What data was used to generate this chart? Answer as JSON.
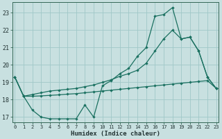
{
  "xlabel": "Humidex (Indice chaleur)",
  "bg_color": "#c8e0e0",
  "grid_color": "#a0c8c8",
  "line_color": "#1a7060",
  "spine_color": "#336655",
  "tick_color": "#223333",
  "xlim": [
    -0.3,
    23.3
  ],
  "ylim": [
    16.7,
    23.6
  ],
  "yticks": [
    17,
    18,
    19,
    20,
    21,
    22,
    23
  ],
  "xticks": [
    0,
    1,
    2,
    3,
    4,
    5,
    6,
    7,
    8,
    9,
    10,
    11,
    12,
    13,
    14,
    15,
    16,
    17,
    18,
    19,
    20,
    21,
    22,
    23
  ],
  "upper_x": [
    0,
    1,
    2,
    3,
    4,
    5,
    6,
    7,
    8,
    9,
    10,
    11,
    12,
    13,
    14,
    15,
    16,
    17,
    18,
    19,
    20,
    21,
    22,
    23
  ],
  "upper_y": [
    19.3,
    18.2,
    17.4,
    17.0,
    16.9,
    16.9,
    16.9,
    16.9,
    17.7,
    17.0,
    18.8,
    19.1,
    19.5,
    19.8,
    20.5,
    21.0,
    22.8,
    22.9,
    23.3,
    21.5,
    21.6,
    20.8,
    19.3,
    18.65
  ],
  "mid_x": [
    0,
    1,
    2,
    3,
    4,
    5,
    6,
    7,
    8,
    9,
    10,
    11,
    12,
    13,
    14,
    15,
    16,
    17,
    18,
    19,
    20,
    21,
    22,
    23
  ],
  "mid_y": [
    19.3,
    18.2,
    18.3,
    18.4,
    18.5,
    18.55,
    18.6,
    18.65,
    18.75,
    18.85,
    19.0,
    19.15,
    19.35,
    19.5,
    19.7,
    20.1,
    20.8,
    21.5,
    22.0,
    21.5,
    21.6,
    20.8,
    19.3,
    18.65
  ],
  "low_x": [
    0,
    1,
    2,
    3,
    4,
    5,
    6,
    7,
    8,
    9,
    10,
    11,
    12,
    13,
    14,
    15,
    16,
    17,
    18,
    19,
    20,
    21,
    22,
    23
  ],
  "low_y": [
    19.3,
    18.2,
    18.2,
    18.22,
    18.25,
    18.28,
    18.32,
    18.35,
    18.4,
    18.45,
    18.5,
    18.55,
    18.6,
    18.65,
    18.7,
    18.75,
    18.8,
    18.85,
    18.9,
    18.95,
    19.0,
    19.05,
    19.1,
    18.65
  ]
}
